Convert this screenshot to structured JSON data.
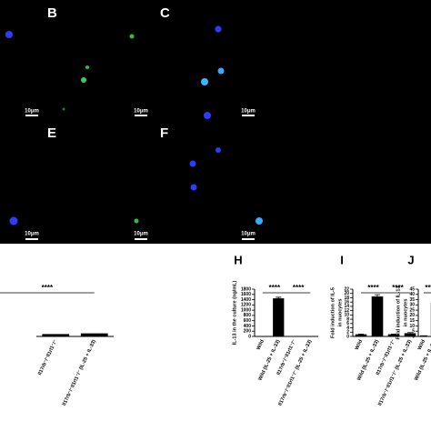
{
  "figure": {
    "panel_labels": [
      "B",
      "C",
      "E",
      "F"
    ],
    "scale_bar": "10μm"
  },
  "chart_data": [
    {
      "type": "bar",
      "categories": [
        "Il17rb⁻/⁻Il1rl1⁻/⁻",
        "Il17rb⁻/⁻Il1rl1⁻/⁻ (IL-25 + IL-33)"
      ],
      "values": [
        1,
        1.3
      ],
      "ylim": [
        0,
        20
      ],
      "significance": [
        "****"
      ],
      "color": "#000000"
    },
    {
      "type": "bar",
      "panel": "H",
      "y_label": [
        "IL-13 in the culture (ng/mL)"
      ],
      "categories": [
        "Wild",
        "Wild (IL-25 + IL-33)",
        "Il17rb⁻/⁻Il1rl1⁻/⁻",
        "Il17rb⁻/⁻Il1rl1⁻/⁻ (IL-25 + IL-33)"
      ],
      "values": [
        5,
        1450,
        5,
        10
      ],
      "errors": [
        0,
        40,
        0,
        0
      ],
      "ylim": [
        0,
        1800
      ],
      "yticks": [
        0,
        200,
        400,
        600,
        800,
        1000,
        1200,
        1400,
        1600,
        1800
      ],
      "significance": [
        "****",
        "****"
      ],
      "color": "#000000"
    },
    {
      "type": "bar",
      "panel": "I",
      "y_label": [
        "Fold induction of IL-5",
        "in nuocytes"
      ],
      "categories": [
        "Wild",
        "Wild (IL-25 + IL-33)",
        "Il17rb⁻/⁻Il1rl1⁻/⁻",
        "Il17rb⁻/⁻Il1rl1⁻/⁻ (IL-25 + IL-33)"
      ],
      "values": [
        1,
        18.6,
        1,
        1.5
      ],
      "errors": [
        0.1,
        0.8,
        0.1,
        0.3
      ],
      "ylim": [
        0,
        22
      ],
      "yticks": [
        0,
        2,
        4,
        6,
        8,
        10,
        12,
        14,
        16,
        18,
        20,
        22
      ],
      "significance": [
        "****",
        "****"
      ],
      "color": "#000000"
    },
    {
      "type": "bar",
      "panel": "J",
      "y_label": [
        "Fold induction of IL-13",
        "in nuocytes"
      ],
      "categories": [
        "Wild",
        "Wild (IL-25 + IL-33)"
      ],
      "values": [
        1,
        32
      ],
      "ylim": [
        0,
        45
      ],
      "yticks": [
        0,
        5,
        10,
        15,
        20,
        25,
        30,
        35,
        40,
        45
      ],
      "significance": [
        "***"
      ],
      "color": "#000000"
    }
  ]
}
